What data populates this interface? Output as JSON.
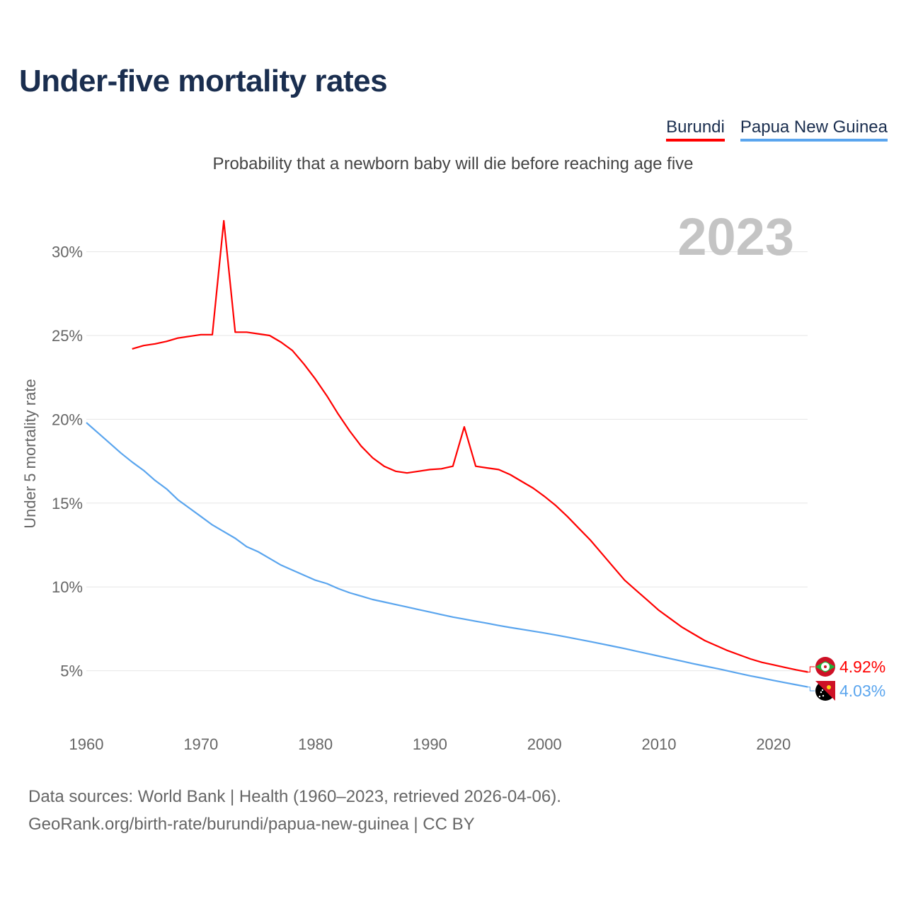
{
  "title": "Under-five mortality rates",
  "subtitle": "Probability that a newborn baby will die before reaching age five",
  "source_line1": "Data sources: World Bank | Health (1960–2023, retrieved 2026-04-06).",
  "source_line2": "GeoRank.org/birth-rate/burundi/papua-new-guinea | CC BY",
  "chart_data": {
    "type": "line",
    "title": "Under-five mortality rates",
    "ylabel": "Under 5 mortality rate",
    "xlabel": "",
    "year_label": "2023",
    "xlim": [
      1960,
      2023
    ],
    "ylim": [
      0,
      32
    ],
    "x_ticks": [
      "1960",
      "1970",
      "1980",
      "1990",
      "2000",
      "2010",
      "2020"
    ],
    "y_ticks": [
      "5%",
      "10%",
      "15%",
      "20%",
      "25%",
      "30%"
    ],
    "legend": "top-right",
    "series": [
      {
        "name": "Burundi",
        "color": "#ff0000",
        "end_label": "4.92%",
        "start": 1964,
        "values": [
          24.2,
          24.4,
          24.5,
          24.65,
          24.85,
          24.95,
          25.05,
          25.05,
          31.85,
          25.2,
          25.2,
          25.1,
          25.0,
          24.6,
          24.1,
          23.3,
          22.4,
          21.4,
          20.3,
          19.3,
          18.4,
          17.7,
          17.2,
          16.9,
          16.8,
          16.9,
          17.0,
          17.05,
          17.2,
          19.55,
          17.2,
          17.1,
          17.0,
          16.7,
          16.3,
          15.9,
          15.4,
          14.85,
          14.2,
          13.5,
          12.8,
          12.0,
          11.2,
          10.4,
          9.8,
          9.2,
          8.6,
          8.1,
          7.6,
          7.2,
          6.8,
          6.5,
          6.2,
          5.95,
          5.7,
          5.5,
          5.35,
          5.2,
          5.05,
          4.92
        ]
      },
      {
        "name": "Papua New Guinea",
        "color": "#5aa5ee",
        "end_label": "4.03%",
        "start": 1960,
        "values": [
          19.8,
          19.2,
          18.6,
          18.0,
          17.45,
          16.95,
          16.35,
          15.85,
          15.2,
          14.7,
          14.2,
          13.7,
          13.3,
          12.9,
          12.4,
          12.1,
          11.7,
          11.3,
          11.0,
          10.7,
          10.4,
          10.2,
          9.9,
          9.65,
          9.45,
          9.25,
          9.1,
          8.95,
          8.8,
          8.65,
          8.5,
          8.35,
          8.2,
          8.08,
          7.95,
          7.83,
          7.7,
          7.58,
          7.47,
          7.36,
          7.25,
          7.13,
          7.0,
          6.87,
          6.74,
          6.6,
          6.46,
          6.32,
          6.17,
          6.02,
          5.87,
          5.72,
          5.57,
          5.42,
          5.28,
          5.14,
          4.99,
          4.84,
          4.69,
          4.56,
          4.42,
          4.29,
          4.16,
          4.03
        ]
      }
    ]
  }
}
